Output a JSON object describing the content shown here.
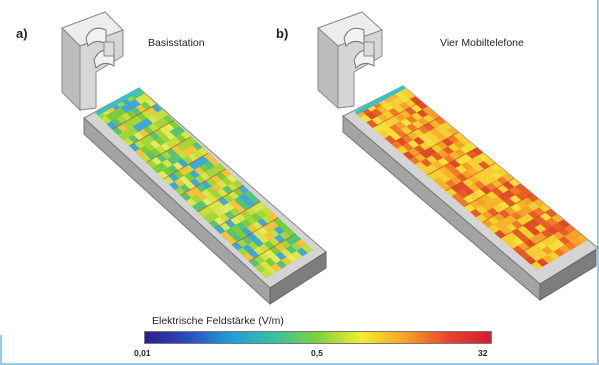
{
  "panels": [
    {
      "letter": "a)",
      "title": "Basisstation",
      "field_palette": [
        "#3fa8d6",
        "#57c27a",
        "#7ccd3b",
        "#a4d63a",
        "#c6df3c",
        "#d8e64a",
        "#e4ec5c",
        "#f5c23a"
      ]
    },
    {
      "letter": "b)",
      "title": "Vier Mobiltelefone",
      "field_palette": [
        "#f2d02e",
        "#f4a02a",
        "#f07a28",
        "#e04a24",
        "#f5e03a",
        "#f6b42c",
        "#f8cd3a",
        "#e85c26"
      ]
    }
  ],
  "legend": {
    "title": "Elektrische Feldstärke (V/m)",
    "ticks": [
      "0,01",
      "0,5",
      "32"
    ],
    "colors": [
      "#2d1e86",
      "#2b4cc2",
      "#1f9fd8",
      "#37c29a",
      "#7fd13a",
      "#f1ee2f",
      "#f6a326",
      "#e8452a",
      "#d31d33"
    ]
  }
}
